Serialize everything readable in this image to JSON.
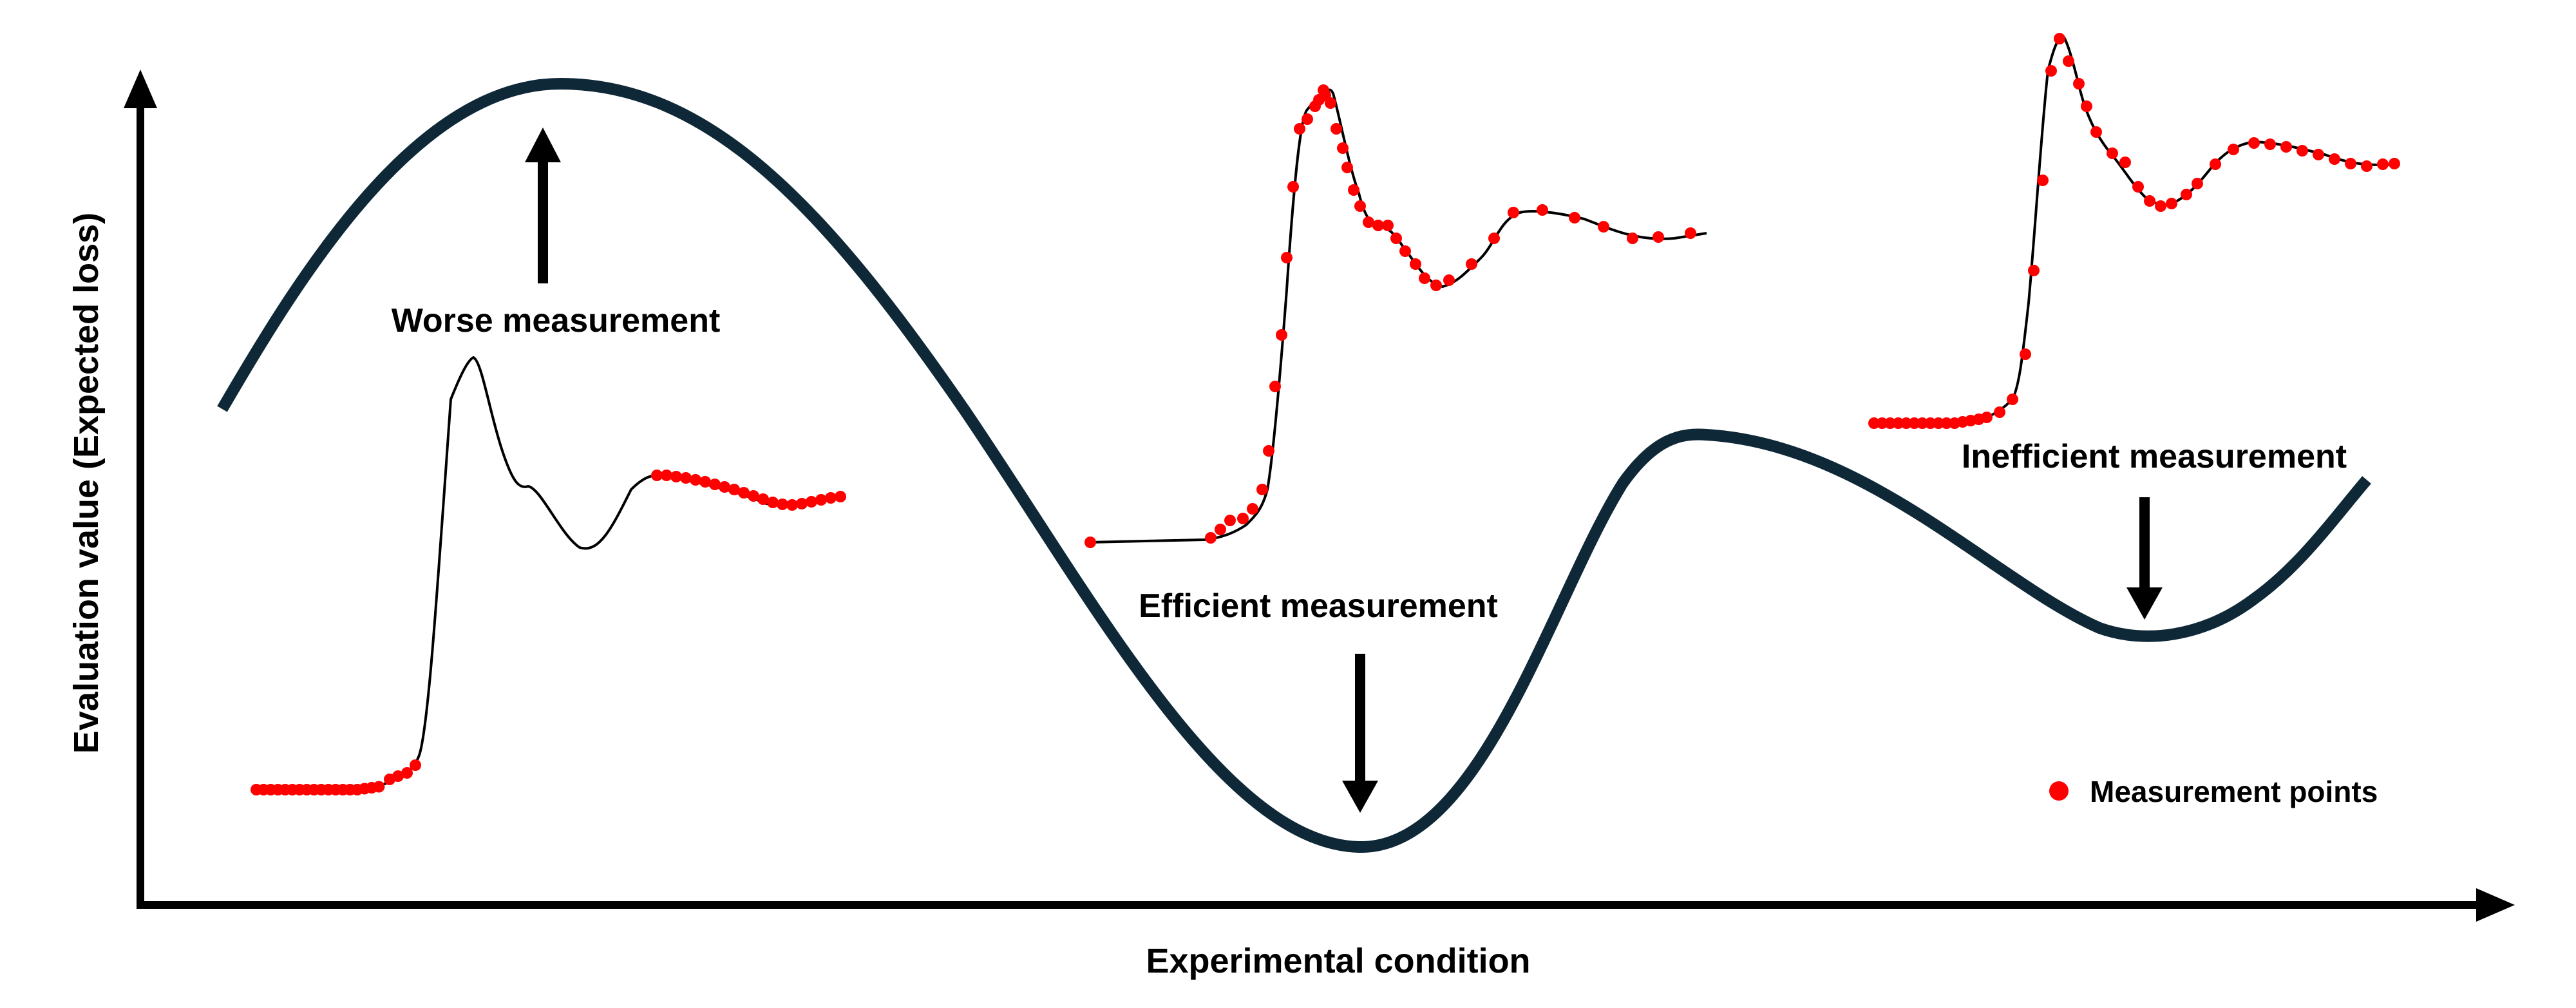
{
  "labels": {
    "x_axis": "Experimental condition",
    "y_axis": "Evaluation value (Expected loss)",
    "worse": "Worse measurement",
    "efficient": "Efficient measurement",
    "inefficient": "Inefficient measurement",
    "legend": "Measurement points"
  },
  "colors": {
    "loss_curve": "#0f2837",
    "axis": "#000000",
    "spectrum_line": "#000000",
    "points": "#ff0000",
    "text": "#000000"
  },
  "legend": {
    "marker": "red-dot"
  }
}
